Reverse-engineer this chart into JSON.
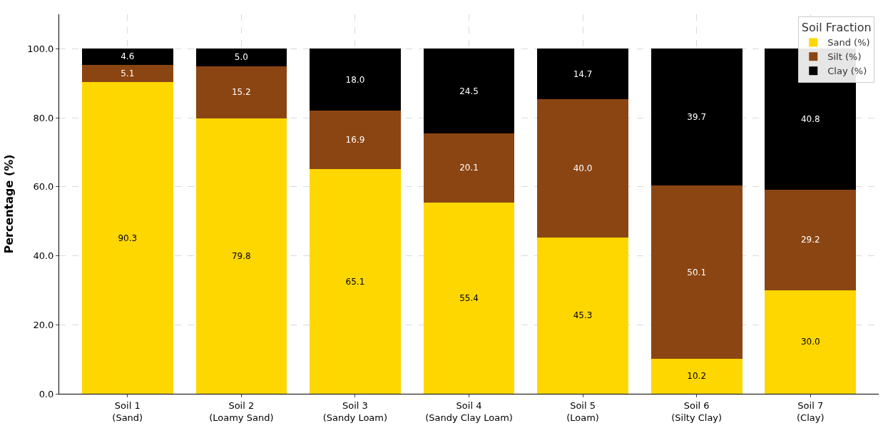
{
  "chart_data": {
    "type": "bar",
    "stacked": true,
    "ylabel": "Percentage (%)",
    "legend_title": "Soil Fraction",
    "legend": "top right",
    "grid": true,
    "categories": [
      "Soil 1\n(Sand)",
      "Soil 2\n(Loamy Sand)",
      "Soil 3\n(Sandy Loam)",
      "Soil 4\n(Sandy Clay Loam)",
      "Soil 5\n(Loam)",
      "Soil 6\n(Silty Clay)",
      "Soil 7\n(Clay)"
    ],
    "ylim": [
      0,
      110
    ],
    "yticks": [
      {
        "value": 0,
        "label": "0.0"
      },
      {
        "value": 20,
        "label": "20.0"
      },
      {
        "value": 40,
        "label": "40.0"
      },
      {
        "value": 60,
        "label": "60.0"
      },
      {
        "value": 80,
        "label": "80.0"
      },
      {
        "value": 100,
        "label": "100.0"
      }
    ],
    "series": [
      {
        "name": "Sand (%)",
        "color": "#ffd700",
        "values": [
          90.3,
          79.8,
          65.1,
          55.4,
          45.3,
          10.2,
          30.0
        ],
        "value_labels": [
          "90.3",
          "79.8",
          "65.1",
          "55.4",
          "45.3",
          "10.2",
          "30.0"
        ]
      },
      {
        "name": "Silt (%)",
        "color": "#8b4513",
        "values": [
          5.1,
          15.2,
          16.9,
          20.1,
          40.0,
          50.1,
          29.2
        ],
        "value_labels": [
          "5.1",
          "15.2",
          "16.9",
          "20.1",
          "40.0",
          "50.1",
          "29.2"
        ]
      },
      {
        "name": "Clay (%)",
        "color": "#000000",
        "values": [
          4.6,
          5.0,
          18.0,
          24.5,
          14.7,
          39.7,
          40.8
        ],
        "value_labels": [
          "4.6",
          "5.0",
          "18.0",
          "24.5",
          "14.7",
          "39.7",
          "40.8"
        ]
      }
    ]
  }
}
